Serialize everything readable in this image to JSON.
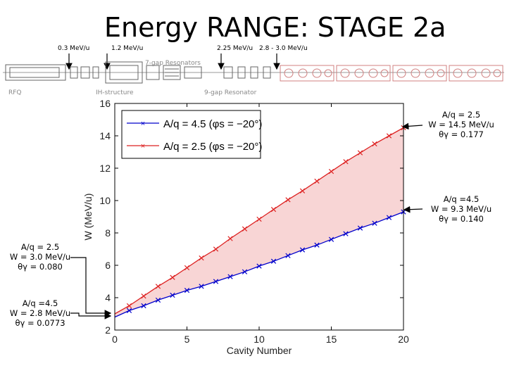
{
  "slide": {
    "title": "Energy RANGE: STAGE 2a",
    "beamline_labels": [
      "0.3 MeV/u",
      "1.2 MeV/u",
      "2.25 MeV/u",
      "2.8 - 3.0 MeV/u"
    ],
    "beamline_text": [
      "RFQ",
      "IH-structure",
      "7-gap Resonators",
      "9-gap Resonator"
    ]
  },
  "annotations": {
    "right_top": [
      "A/q = 2.5",
      "W = 14.5 MeV/u",
      "θγ = 0.177"
    ],
    "right_mid": [
      "A/q =4.5",
      "W = 9.3 MeV/u",
      "θγ = 0.140"
    ],
    "left_top": [
      "A/q = 2.5",
      "W = 3.0 MeV/u",
      "θγ = 0.080"
    ],
    "left_bottom": [
      "A/q =4.5",
      "W = 2.8 MeV/u",
      "θγ = 0.0773"
    ]
  },
  "chart_data": {
    "type": "line",
    "xlabel": "Cavity Number",
    "ylabel": "W (MeV/u)",
    "xlim": [
      0,
      20
    ],
    "ylim": [
      2,
      16
    ],
    "xticks": [
      0,
      5,
      10,
      15,
      20
    ],
    "yticks": [
      2,
      4,
      6,
      8,
      10,
      12,
      14,
      16
    ],
    "grid": false,
    "legend_position": "top-left",
    "series": [
      {
        "name": "A/q = 4.5 (φs = −20°)",
        "color": "#0000cc",
        "x": [
          0,
          1,
          2,
          3,
          4,
          5,
          6,
          7,
          8,
          9,
          10,
          11,
          12,
          13,
          14,
          15,
          16,
          17,
          18,
          19,
          20
        ],
        "values": [
          2.8,
          3.2,
          3.5,
          3.85,
          4.15,
          4.45,
          4.7,
          5.0,
          5.3,
          5.6,
          5.95,
          6.25,
          6.6,
          6.95,
          7.25,
          7.6,
          7.95,
          8.3,
          8.6,
          8.95,
          9.3
        ]
      },
      {
        "name": "A/q = 2.5 (φs = −20°)",
        "color": "#dd2222",
        "x": [
          0,
          1,
          2,
          3,
          4,
          5,
          6,
          7,
          8,
          9,
          10,
          11,
          12,
          13,
          14,
          15,
          16,
          17,
          18,
          19,
          20
        ],
        "values": [
          3.0,
          3.5,
          4.1,
          4.7,
          5.25,
          5.85,
          6.45,
          7.0,
          7.65,
          8.25,
          8.85,
          9.45,
          10.05,
          10.6,
          11.2,
          11.8,
          12.4,
          12.95,
          13.5,
          14.0,
          14.5
        ]
      }
    ],
    "fill_between": {
      "color": "#f8d5d5"
    }
  }
}
